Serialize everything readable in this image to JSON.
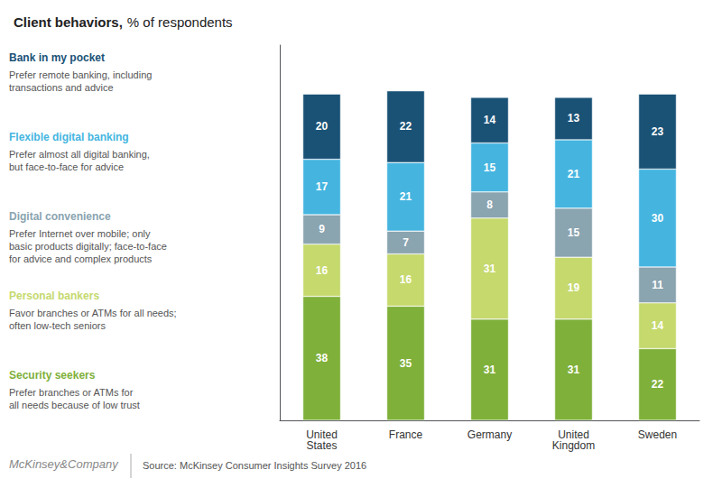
{
  "chart_data": {
    "type": "bar",
    "title": "Client behaviors,",
    "subtitle": "% of respondents",
    "categories": [
      "United\nStates",
      "France",
      "Germany",
      "United\nKingdom",
      "Sweden"
    ],
    "series": [
      {
        "name": "Bank in my pocket",
        "color": "#1a5276",
        "values": [
          20,
          22,
          14,
          13,
          23
        ]
      },
      {
        "name": "Flexible digital banking",
        "color": "#45b5e0",
        "values": [
          17,
          21,
          15,
          21,
          30
        ]
      },
      {
        "name": "Digital convenience",
        "color": "#8aa4b0",
        "values": [
          9,
          7,
          8,
          15,
          11
        ]
      },
      {
        "name": "Personal bankers",
        "color": "#c5d96d",
        "values": [
          16,
          16,
          31,
          19,
          14
        ]
      },
      {
        "name": "Security seekers",
        "color": "#7fb03a",
        "values": [
          38,
          35,
          31,
          31,
          22
        ]
      }
    ],
    "annotations": [
      {
        "series": "Bank in my pocket",
        "text": "Prefer remote banking, including\ntransactions and advice"
      },
      {
        "series": "Flexible digital banking",
        "text": "Prefer almost all digital banking,\nbut face-to-face for advice"
      },
      {
        "series": "Digital convenience",
        "text": "Prefer Internet over mobile; only\nbasic products digitally; face-to-face\nfor advice and complex products"
      },
      {
        "series": "Personal bankers",
        "text": "Favor branches or ATMs for all needs;\noften low-tech seniors"
      },
      {
        "series": "Security seekers",
        "text": "Prefer branches or ATMs for\nall needs because of low trust"
      },
      {
        "text": "McKinsey&Company"
      },
      {
        "text": "Source: McKinsey Consumer Insights Survey 2016"
      }
    ],
    "ylim": [
      0,
      115
    ],
    "yticks": [],
    "tick_labels": "x",
    "stacked": true,
    "data_labels": true,
    "grid": false,
    "legend": "left"
  }
}
